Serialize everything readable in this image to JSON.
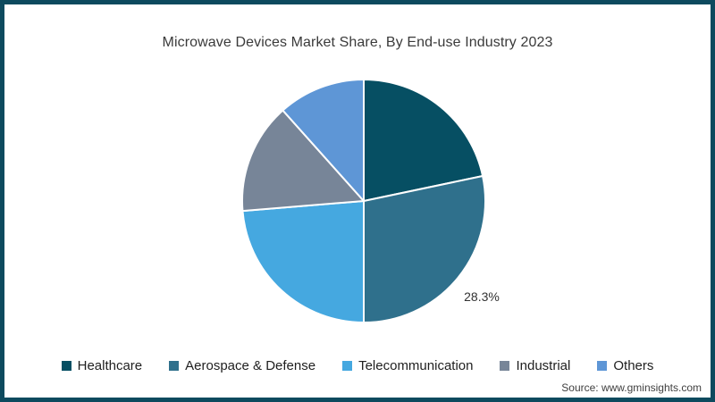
{
  "window": {
    "border_color": "#0d4a5e",
    "background": "#ffffff"
  },
  "chart": {
    "title": "Microwave Devices Market Share, By End-use Industry 2023",
    "source": "Source: www.gminsights.com"
  },
  "chart_data": {
    "type": "pie",
    "title": "Microwave Devices Market Share, By End-use Industry 2023",
    "start_angle_deg": 0,
    "direction": "clockwise",
    "legend_position": "bottom",
    "visible_data_labels": [
      "28.3%"
    ],
    "slices": [
      {
        "label": "Healthcare",
        "value": 21.7,
        "color": "#064f63",
        "data_label": ""
      },
      {
        "label": "Aerospace & Defense",
        "value": 28.3,
        "color": "#2f708c",
        "data_label": "28.3%"
      },
      {
        "label": "Telecommunication",
        "value": 23.7,
        "color": "#45a8e0",
        "data_label": ""
      },
      {
        "label": "Industrial",
        "value": 14.7,
        "color": "#778598",
        "data_label": ""
      },
      {
        "label": "Others",
        "value": 11.6,
        "color": "#5e96d6",
        "data_label": ""
      }
    ]
  }
}
